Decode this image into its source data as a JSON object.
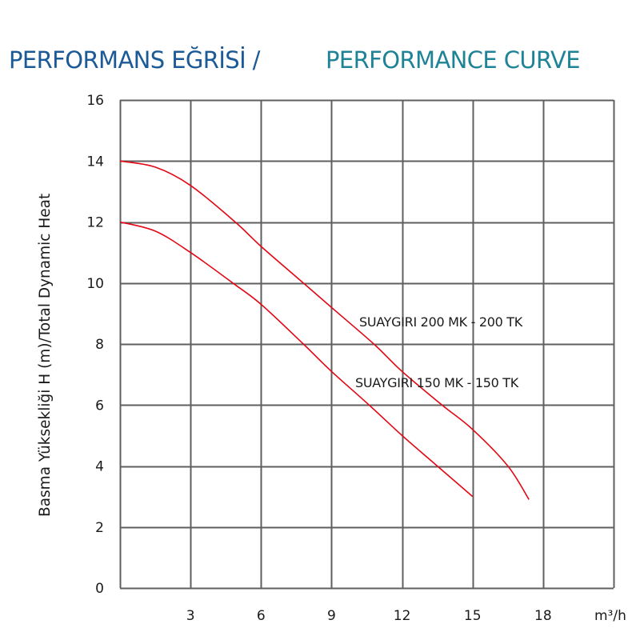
{
  "header": {
    "title_tr": "PERFORMANS EĞRİSİ /",
    "title_en": "PERFORMANCE CURVE"
  },
  "colors": {
    "title_tr": "#1b5a96",
    "title_en": "#1f8397",
    "curve": "#e30613",
    "grid": "#5f5f5f"
  },
  "chart_data": {
    "type": "line",
    "title": "PERFORMANS EĞRİSİ / PERFORMANCE CURVE",
    "xlabel": "m³/h",
    "ylabel": "Basma Yüksekliği H (m)/Total Dynamic Heat",
    "xlim": [
      0,
      21
    ],
    "ylim": [
      0,
      16
    ],
    "grid": true,
    "x_ticks": [
      3,
      6,
      9,
      12,
      15,
      18
    ],
    "x_tick_labels": [
      "3",
      "6",
      "9",
      "12",
      "15",
      "18"
    ],
    "y_ticks": [
      0,
      2,
      4,
      6,
      8,
      10,
      12,
      14,
      16
    ],
    "y_tick_labels": [
      "0",
      "2",
      "4",
      "6",
      "8",
      "10",
      "12",
      "14",
      "16"
    ],
    "series": [
      {
        "name": "SUAYGIRI 200 MK - 200 TK",
        "x": [
          0,
          1.5,
          3,
          4.9,
          6,
          7.8,
          9,
          10.8,
          12,
          13.7,
          15,
          16.5,
          17.4
        ],
        "y": [
          14,
          13.8,
          13.2,
          12,
          11.2,
          10,
          9.2,
          8,
          7.1,
          6,
          5.2,
          4,
          2.9
        ]
      },
      {
        "name": "SUAYGIRI 150 MK - 150 TK",
        "x": [
          0,
          1.5,
          3,
          4.8,
          6,
          7.8,
          9,
          10.6,
          12,
          13.5,
          15
        ],
        "y": [
          12,
          11.7,
          11.0,
          10,
          9.3,
          8,
          7.1,
          6,
          5.0,
          4,
          3.0
        ]
      }
    ]
  }
}
